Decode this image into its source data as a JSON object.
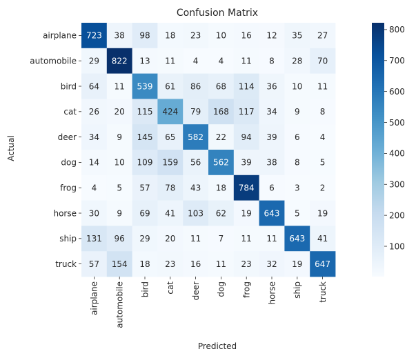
{
  "chart_data": {
    "type": "heatmap",
    "title": "Confusion Matrix",
    "xlabel": "Predicted",
    "ylabel": "Actual",
    "x_categories": [
      "airplane",
      "automobile",
      "bird",
      "cat",
      "deer",
      "dog",
      "frog",
      "horse",
      "ship",
      "truck"
    ],
    "y_categories": [
      "airplane",
      "automobile",
      "bird",
      "cat",
      "deer",
      "dog",
      "frog",
      "horse",
      "ship",
      "truck"
    ],
    "values": [
      [
        723,
        38,
        98,
        18,
        23,
        10,
        16,
        12,
        35,
        27
      ],
      [
        29,
        822,
        13,
        11,
        4,
        4,
        11,
        8,
        28,
        70
      ],
      [
        64,
        11,
        539,
        61,
        86,
        68,
        114,
        36,
        10,
        11
      ],
      [
        26,
        20,
        115,
        424,
        79,
        168,
        117,
        34,
        9,
        8
      ],
      [
        34,
        9,
        145,
        65,
        582,
        22,
        94,
        39,
        6,
        4
      ],
      [
        14,
        10,
        109,
        159,
        56,
        562,
        39,
        38,
        8,
        5
      ],
      [
        4,
        5,
        57,
        78,
        43,
        18,
        784,
        6,
        3,
        2
      ],
      [
        30,
        9,
        69,
        41,
        103,
        62,
        19,
        643,
        5,
        19
      ],
      [
        131,
        96,
        29,
        20,
        11,
        7,
        11,
        11,
        643,
        41
      ],
      [
        57,
        154,
        18,
        23,
        16,
        11,
        23,
        32,
        19,
        647
      ]
    ],
    "colormap": "Blues",
    "colorbar": {
      "ticks": [
        100,
        200,
        300,
        400,
        500,
        600,
        700,
        800
      ],
      "range": [
        2,
        822
      ]
    },
    "annotations": true,
    "grid": false
  }
}
